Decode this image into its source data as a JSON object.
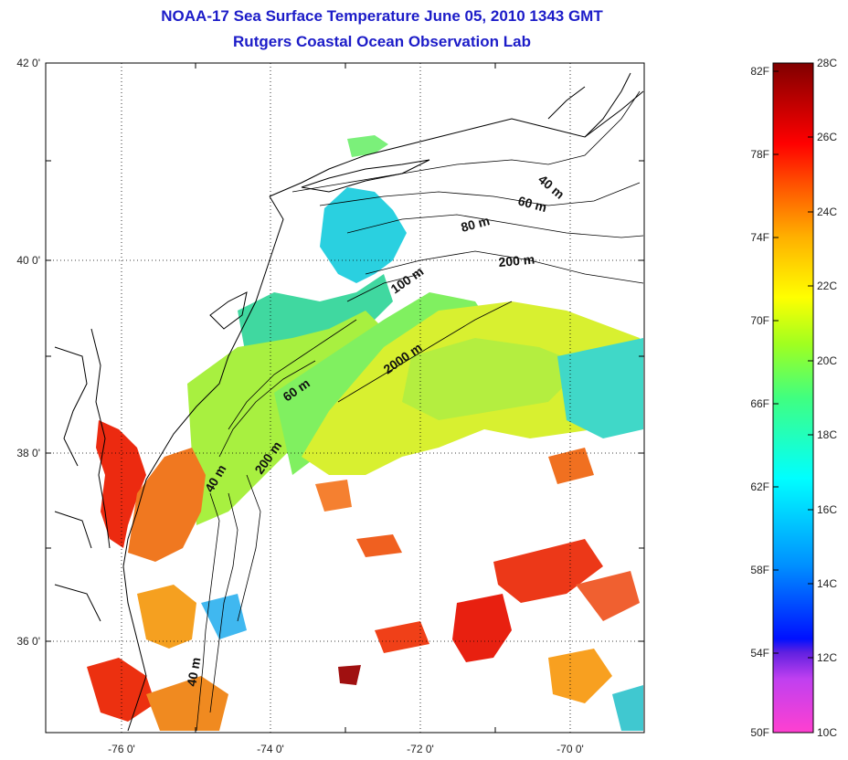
{
  "title": {
    "line1": "NOAA-17 Sea Surface Temperature June 05, 2010 1343 GMT",
    "line2": "Rutgers Coastal Ocean Observation Lab"
  },
  "map": {
    "lat_labels": [
      "42 0'",
      "40 0'",
      "38 0'",
      "36 0'"
    ],
    "lon_labels": [
      "-76 0'",
      "-74 0'",
      "-72 0'",
      "-70 0'"
    ],
    "gridlines": "dotted",
    "isobath_labels": [
      "40 m",
      "60 m",
      "80 m",
      "200 m",
      "100 m",
      "2000 m",
      "60 m",
      "200 m",
      "40 m",
      "40 m"
    ]
  },
  "colorbar": {
    "fahrenheit_labels": [
      "82F",
      "78F",
      "74F",
      "70F",
      "66F",
      "62F",
      "58F",
      "54F",
      "50F"
    ],
    "celsius_labels": [
      "28C",
      "26C",
      "24C",
      "22C",
      "20C",
      "18C",
      "16C",
      "14C",
      "12C",
      "10C"
    ],
    "colors": [
      "#ff40c8",
      "#8a2be2",
      "#0000ff",
      "#00a0ff",
      "#00ffff",
      "#40ff80",
      "#a0ff20",
      "#ffff00",
      "#ffa000",
      "#ff4000",
      "#ff0000",
      "#8b0000"
    ]
  }
}
